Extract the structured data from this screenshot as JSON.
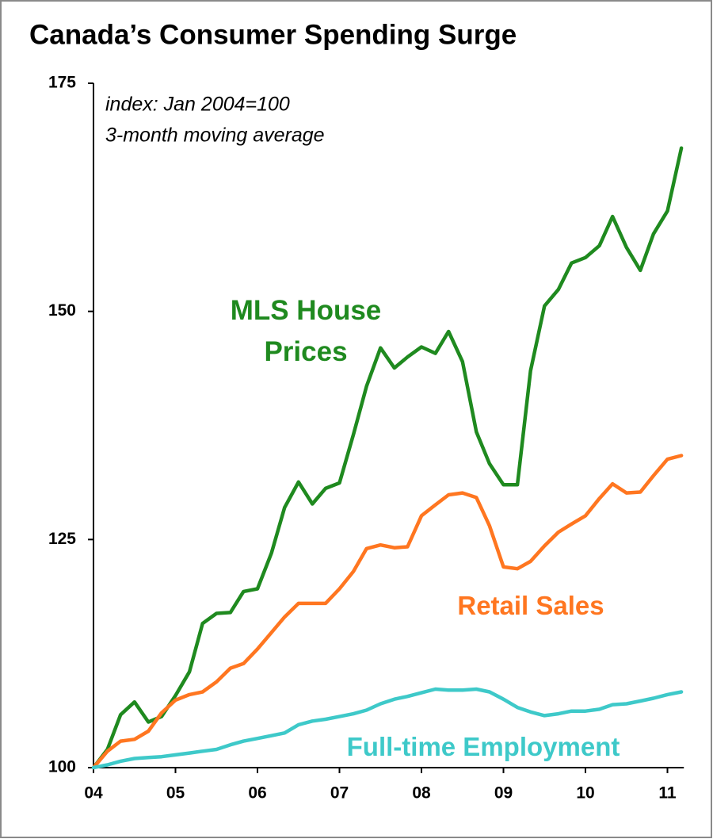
{
  "chart_data": {
    "type": "line",
    "title": "Canada’s Consumer Spending Surge",
    "annotations": [
      "index: Jan 2004=100",
      "3-month moving average"
    ],
    "x": [
      2004,
      2004.17,
      2004.33,
      2004.5,
      2004.67,
      2004.83,
      2005,
      2005.17,
      2005.33,
      2005.5,
      2005.67,
      2005.83,
      2006,
      2006.17,
      2006.33,
      2006.5,
      2006.67,
      2006.83,
      2007,
      2007.17,
      2007.33,
      2007.5,
      2007.67,
      2007.83,
      2008,
      2008.17,
      2008.33,
      2008.5,
      2008.67,
      2008.83,
      2009,
      2009.17,
      2009.33,
      2009.5,
      2009.67,
      2009.83,
      2010,
      2010.17,
      2010.33,
      2010.5,
      2010.67,
      2010.83,
      2011,
      2011.17
    ],
    "series": [
      {
        "name": "MLS House Prices",
        "color": "#1f8a1f",
        "values": [
          100,
          102.0,
          105.8,
          107.2,
          105.0,
          105.6,
          107.9,
          110.5,
          115.8,
          116.9,
          117.0,
          119.3,
          119.6,
          123.5,
          128.5,
          131.3,
          128.9,
          130.6,
          131.2,
          136.5,
          141.8,
          146.0,
          143.8,
          145.0,
          146.1,
          145.4,
          147.8,
          144.5,
          136.8,
          133.3,
          131.0,
          131.0,
          143.5,
          150.6,
          152.4,
          155.3,
          155.9,
          157.2,
          160.4,
          157.0,
          154.5,
          158.5,
          161.0,
          167.9
        ]
      },
      {
        "name": "Retail Sales",
        "color": "#ff7620",
        "values": [
          100,
          101.8,
          102.9,
          103.1,
          104.0,
          106.0,
          107.4,
          108.0,
          108.3,
          109.4,
          110.9,
          111.4,
          113.0,
          114.8,
          116.5,
          118.0,
          118.0,
          118.0,
          119.6,
          121.5,
          124.0,
          124.4,
          124.1,
          124.2,
          127.6,
          128.8,
          129.9,
          130.1,
          129.6,
          126.5,
          122.0,
          121.8,
          122.6,
          124.3,
          125.8,
          126.7,
          127.6,
          129.5,
          131.1,
          130.1,
          130.2,
          132.0,
          133.8,
          134.2
        ]
      },
      {
        "name": "Full-time Employment",
        "color": "#3ec9c9",
        "values": [
          100,
          100.3,
          100.7,
          101.0,
          101.1,
          101.2,
          101.4,
          101.6,
          101.8,
          102.0,
          102.5,
          102.9,
          103.2,
          103.5,
          103.8,
          104.7,
          105.1,
          105.3,
          105.6,
          105.9,
          106.3,
          107.0,
          107.5,
          107.8,
          108.2,
          108.6,
          108.5,
          108.5,
          108.6,
          108.3,
          107.5,
          106.6,
          106.1,
          105.7,
          105.9,
          106.2,
          106.2,
          106.4,
          106.9,
          107.0,
          107.3,
          107.6,
          108.0,
          108.3
        ]
      }
    ],
    "xlim": [
      2004,
      2011.2
    ],
    "xticks": [
      {
        "value": 2004,
        "label": "04"
      },
      {
        "value": 2005,
        "label": "05"
      },
      {
        "value": 2006,
        "label": "06"
      },
      {
        "value": 2007,
        "label": "07"
      },
      {
        "value": 2008,
        "label": "08"
      },
      {
        "value": 2009,
        "label": "09"
      },
      {
        "value": 2010,
        "label": "10"
      },
      {
        "value": 2011,
        "label": "11"
      }
    ],
    "ylim": [
      100,
      175
    ],
    "yticks": [
      100,
      125,
      150,
      175
    ],
    "grid": false
  }
}
